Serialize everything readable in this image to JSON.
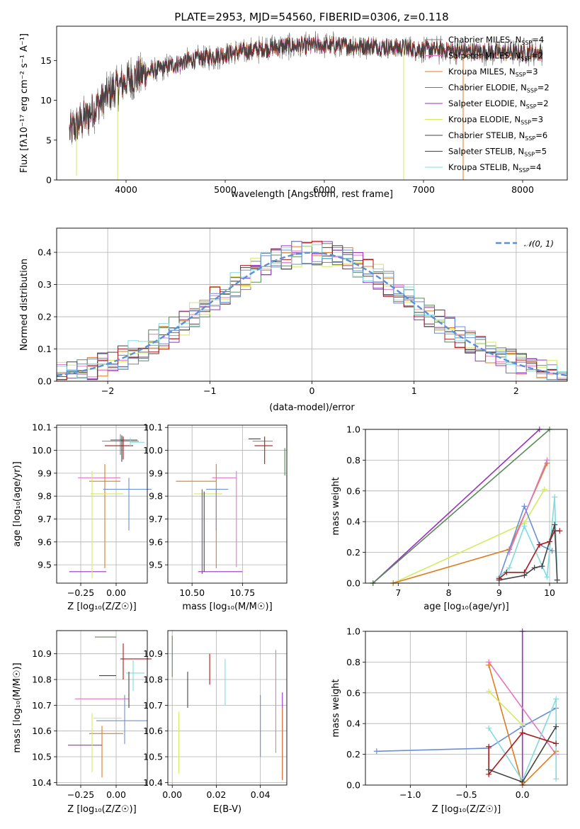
{
  "figure": {
    "title": "PLATE=2953, MJD=54560, FIBERID=0306, z=0.118"
  },
  "colors": {
    "Chabrier MILES": "#808080",
    "Salpeter MILES": "#e377c2",
    "Kroupa MILES": "#e07b20",
    "Chabrier ELODIE": "#5b8a5b",
    "Salpeter ELODIE": "#9b30c0",
    "Kroupa ELODIE": "#d4ea60",
    "Chabrier STELIB": "#444444",
    "Salpeter STELIB": "#aa1a1a",
    "Kroupa STELIB": "#7fdbe0",
    "extra_blue": "#6a8fd8",
    "gauss": "#5b8fd8"
  },
  "chart_data": [
    {
      "type": "line",
      "name": "spectrum",
      "xlabel": "wavelength [Angstrom, rest frame]",
      "ylabel": "Flux [fλ10⁻¹⁷ erg cm⁻² s⁻¹ A⁻¹]",
      "xlim": [
        3300,
        8450
      ],
      "ylim": [
        0,
        19.3
      ],
      "xticks": [
        4000,
        5000,
        6000,
        7000,
        8000
      ],
      "yticks": [
        0,
        5,
        10,
        15
      ],
      "grid": false,
      "legend_position": "top-right",
      "x_range_data": [
        3430,
        8200
      ],
      "continuum_anchors": [
        [
          3430,
          6.0
        ],
        [
          3600,
          8.0
        ],
        [
          3800,
          10.5
        ],
        [
          4000,
          12.5
        ],
        [
          4300,
          13.8
        ],
        [
          4700,
          15.2
        ],
        [
          5200,
          16.2
        ],
        [
          5600,
          16.8
        ],
        [
          6000,
          16.9
        ],
        [
          6500,
          16.8
        ],
        [
          7000,
          16.4
        ],
        [
          7500,
          16.1
        ],
        [
          8000,
          16.0
        ],
        [
          8200,
          16.0
        ]
      ],
      "dips": [
        [
          3500,
          0.5
        ],
        [
          3915,
          0.0
        ],
        [
          6800,
          0.0
        ],
        [
          7400,
          0.0
        ]
      ],
      "series": [
        {
          "name": "Chabrier MILES",
          "nssp": "4"
        },
        {
          "name": "Salpeter MILES",
          "nssp": "2"
        },
        {
          "name": "Kroupa MILES",
          "nssp": "3"
        },
        {
          "name": "Chabrier ELODIE",
          "nssp": "2"
        },
        {
          "name": "Salpeter ELODIE",
          "nssp": "2"
        },
        {
          "name": "Kroupa ELODIE",
          "nssp": "3"
        },
        {
          "name": "Chabrier STELIB",
          "nssp": "6"
        },
        {
          "name": "Salpeter STELIB",
          "nssp": "5"
        },
        {
          "name": "Kroupa STELIB",
          "nssp": "4"
        }
      ]
    },
    {
      "type": "histogram",
      "name": "residuals",
      "xlabel": "(data-model)/error",
      "ylabel": "Normed distribution",
      "xlim": [
        -2.5,
        2.5
      ],
      "ylim": [
        0,
        0.475
      ],
      "xticks": [
        -2,
        -1,
        0,
        1,
        2
      ],
      "yticks": [
        0.0,
        0.1,
        0.2,
        0.3,
        0.4
      ],
      "grid": true,
      "legend": "𝒩(0, 1)",
      "legend_position": "top-right",
      "bin_width": 0.1
    },
    {
      "type": "errorbar",
      "name": "age-vs-Z",
      "xlabel": "Z [log₁₀(Z/Z☉)]",
      "ylabel": "age [log₁₀(age/yr)]",
      "xlim": [
        -0.42,
        0.22
      ],
      "ylim": [
        9.42,
        10.11
      ],
      "xticks": [
        -0.25,
        0.0
      ],
      "yticks": [
        9.5,
        9.6,
        9.7,
        9.8,
        9.9,
        10.0,
        10.1
      ],
      "grid": true,
      "points": [
        {
          "c": "Chabrier MILES",
          "x": 0.03,
          "xerr": [
            0.13,
            0.13
          ],
          "y": 10.04,
          "yerr": [
            0.06,
            0.03
          ]
        },
        {
          "c": "Salpeter MILES",
          "x": -0.12,
          "xerr": [
            0.15,
            0.15
          ],
          "y": 9.88,
          "yerr": [
            0.0,
            0.0
          ]
        },
        {
          "c": "Kroupa MILES",
          "x": -0.08,
          "xerr": [
            0.11,
            0.11
          ],
          "y": 9.865,
          "yerr": [
            0.38,
            0.075
          ]
        },
        {
          "c": "Chabrier ELODIE",
          "x": 0.05,
          "xerr": [
            0.0,
            0.0
          ],
          "y": 10.04,
          "yerr": [
            0.02,
            0.02
          ]
        },
        {
          "c": "Salpeter ELODIE",
          "x": -0.09,
          "xerr": [
            0.24,
            0.02
          ],
          "y": 9.47,
          "yerr": [
            0.0,
            0.0
          ]
        },
        {
          "c": "Kroupa ELODIE",
          "x": -0.17,
          "xerr": [
            0.0,
            0.0
          ],
          "y": 9.81,
          "yerr": [
            0.37,
            0.1
          ]
        },
        {
          "c": "Chabrier STELIB",
          "x": 0.04,
          "xerr": [
            0.08,
            0.11
          ],
          "y": 10.045,
          "yerr": [
            0.095,
            0.02
          ]
        },
        {
          "c": "Salpeter STELIB",
          "x": 0.05,
          "xerr": [
            0.13,
            0.07
          ],
          "y": 10.02,
          "yerr": [
            0.06,
            0.04
          ]
        },
        {
          "c": "Kroupa STELIB",
          "x": 0.1,
          "xerr": [
            0.0,
            0.1
          ],
          "y": 10.035,
          "yerr": [
            0.02,
            0.02
          ]
        },
        {
          "c": "extra_blue",
          "x": 0.09,
          "xerr": [
            0.18,
            0.16
          ],
          "y": 9.83,
          "yerr": [
            0.18,
            0.05
          ]
        },
        {
          "c": "Kroupa ELODIE",
          "x": -0.05,
          "xerr": [
            0.13,
            0.1
          ],
          "y": 9.81,
          "yerr": [
            0.0,
            0.0
          ]
        }
      ]
    },
    {
      "type": "errorbar",
      "name": "age-vs-mass",
      "xlabel": "mass [log₁₀(M/M☉)]",
      "ylabel": "",
      "xlim": [
        10.38,
        10.97
      ],
      "ylim": [
        9.42,
        10.11
      ],
      "xticks": [
        10.5,
        10.75
      ],
      "yticks": [
        9.5,
        9.6,
        9.7,
        9.8,
        9.9,
        10.0,
        10.1
      ],
      "grid": true,
      "points": [
        {
          "c": "Chabrier MILES",
          "x": 10.9,
          "xerr": [
            0.1,
            0.0
          ],
          "y": 10.04,
          "yerr": [
            0.0,
            0.0
          ]
        },
        {
          "c": "Salpeter MILES",
          "x": 10.72,
          "xerr": [
            0.12,
            0.0
          ],
          "y": 9.88,
          "yerr": [
            0.39,
            0.03
          ]
        },
        {
          "c": "Kroupa MILES",
          "x": 10.62,
          "xerr": [
            0.2,
            0.0
          ],
          "y": 9.865,
          "yerr": [
            0.38,
            0.075
          ]
        },
        {
          "c": "Chabrier ELODIE",
          "x": 10.96,
          "xerr": [
            0.0,
            0.0
          ],
          "y": 9.96,
          "yerr": [
            0.07,
            0.05
          ]
        },
        {
          "c": "Salpeter ELODIE",
          "x": 10.63,
          "xerr": [
            0.1,
            0.12
          ],
          "y": 9.47,
          "yerr": [
            0.0,
            0.0
          ]
        },
        {
          "c": "Kroupa ELODIE",
          "x": 10.58,
          "xerr": [
            0.07,
            0.07
          ],
          "y": 9.81,
          "yerr": [
            0.0,
            0.0
          ]
        },
        {
          "c": "Chabrier STELIB",
          "x": 10.84,
          "xerr": [
            0.06,
            0.0
          ],
          "y": 10.05,
          "yerr": [
            0.0,
            0.0
          ]
        },
        {
          "c": "Salpeter STELIB",
          "x": 10.86,
          "xerr": [
            0.05,
            0.04
          ],
          "y": 10.02,
          "yerr": [
            0.08,
            0.04
          ]
        },
        {
          "c": "extra_blue",
          "x": 10.62,
          "xerr": [
            0.05,
            0.06
          ],
          "y": 9.83,
          "yerr": [
            0.18,
            0.0
          ]
        },
        {
          "c": "Salpeter MILES",
          "x": 10.73,
          "xerr": [
            0.0,
            0.0
          ],
          "y": 9.88,
          "yerr": [
            0.0,
            0.0
          ]
        },
        {
          "c": "Salpeter ELODIE",
          "x": 10.55,
          "xerr": [
            0.0,
            0.0
          ],
          "y": 9.6,
          "yerr": [
            0.14,
            0.23
          ]
        },
        {
          "c": "Chabrier STELIB",
          "x": 10.56,
          "xerr": [
            0.0,
            0.0
          ],
          "y": 9.64,
          "yerr": [
            0.17,
            0.18
          ]
        }
      ]
    },
    {
      "type": "line",
      "name": "mass-weight-vs-age",
      "xlabel": "age [log₁₀(age/yr)]",
      "ylabel": "mass weight",
      "xlim": [
        6.35,
        10.35
      ],
      "ylim": [
        0,
        1.0
      ],
      "xticks": [
        7,
        8,
        9,
        10
      ],
      "yticks": [
        0.0,
        0.2,
        0.4,
        0.6,
        0.8,
        1.0
      ],
      "grid": true,
      "series": [
        {
          "c": "Salpeter ELODIE",
          "x": [
            6.5,
            9.8
          ],
          "y": [
            0.0,
            1.0
          ]
        },
        {
          "c": "Chabrier ELODIE",
          "x": [
            6.5,
            10.0
          ],
          "y": [
            0.0,
            1.0
          ]
        },
        {
          "c": "Kroupa ELODIE",
          "x": [
            6.9,
            9.5,
            9.9
          ],
          "y": [
            0.0,
            0.39,
            0.61
          ]
        },
        {
          "c": "Kroupa MILES",
          "x": [
            6.9,
            9.2,
            9.95
          ],
          "y": [
            0.0,
            0.22,
            0.78
          ]
        },
        {
          "c": "Salpeter MILES",
          "x": [
            9.2,
            9.95
          ],
          "y": [
            0.2,
            0.8
          ]
        },
        {
          "c": "extra_blue",
          "x": [
            9.0,
            9.5,
            9.8,
            10.05
          ],
          "y": [
            0.03,
            0.5,
            0.25,
            0.21
          ]
        },
        {
          "c": "Kroupa STELIB",
          "x": [
            9.0,
            9.2,
            9.5,
            9.95,
            10.1,
            10.15
          ],
          "y": [
            0.04,
            0.1,
            0.37,
            0.04,
            0.56,
            0.02
          ]
        },
        {
          "c": "Salpeter STELIB",
          "x": [
            9.0,
            9.15,
            9.5,
            9.8,
            10.0,
            10.1,
            10.2
          ],
          "y": [
            0.03,
            0.07,
            0.07,
            0.25,
            0.27,
            0.34,
            0.34
          ]
        },
        {
          "c": "Chabrier STELIB",
          "x": [
            9.0,
            9.5,
            9.7,
            9.85,
            10.1,
            10.15
          ],
          "y": [
            0.02,
            0.05,
            0.1,
            0.11,
            0.38,
            0.02
          ]
        }
      ]
    },
    {
      "type": "errorbar",
      "name": "mass-vs-Z",
      "xlabel": "Z [log₁₀(Z/Z☉)]",
      "ylabel": "mass [log₁₀(M/M☉)]",
      "xlim": [
        -0.42,
        0.22
      ],
      "ylim": [
        10.39,
        10.99
      ],
      "xticks": [
        -0.25,
        0.0
      ],
      "yticks": [
        10.4,
        10.5,
        10.6,
        10.7,
        10.8,
        10.9
      ],
      "grid": true,
      "points": [
        {
          "c": "Chabrier MILES",
          "x": -0.02,
          "xerr": [
            0.0,
            0.0
          ],
          "y": 10.9,
          "yerr": [
            0.0,
            0.0
          ]
        },
        {
          "c": "Salpeter MILES",
          "x": -0.09,
          "xerr": [
            0.2,
            0.18
          ],
          "y": 10.725,
          "yerr": [
            0.0,
            0.0
          ]
        },
        {
          "c": "Kroupa MILES",
          "x": -0.1,
          "xerr": [
            0.09,
            0.15
          ],
          "y": 10.59,
          "yerr": [
            0.17,
            0.03
          ]
        },
        {
          "c": "Chabrier ELODIE",
          "x": 0.0,
          "xerr": [
            0.15,
            0.0
          ],
          "y": 10.965,
          "yerr": [
            0.0,
            0.0
          ]
        },
        {
          "c": "Salpeter ELODIE",
          "x": -0.1,
          "xerr": [
            0.24,
            0.0
          ],
          "y": 10.545,
          "yerr": [
            0.0,
            0.0
          ]
        },
        {
          "c": "Kroupa ELODIE",
          "x": -0.17,
          "xerr": [
            0.0,
            0.0
          ],
          "y": 10.6,
          "yerr": [
            0.16,
            0.07
          ]
        },
        {
          "c": "Chabrier STELIB",
          "x": 0.0,
          "xerr": [
            0.12,
            0.0
          ],
          "y": 10.815,
          "yerr": [
            0.0,
            0.0
          ]
        },
        {
          "c": "Salpeter STELIB",
          "x": 0.05,
          "xerr": [
            0.02,
            0.2
          ],
          "y": 10.88,
          "yerr": [
            0.08,
            0.06
          ]
        },
        {
          "c": "Kroupa STELIB",
          "x": 0.12,
          "xerr": [
            0.05,
            0.08
          ],
          "y": 10.825,
          "yerr": [
            0.07,
            0.05
          ]
        },
        {
          "c": "extra_blue",
          "x": 0.06,
          "xerr": [
            0.2,
            0.16
          ],
          "y": 10.64,
          "yerr": [
            0.09,
            0.1
          ]
        },
        {
          "c": "Kroupa ELODIE",
          "x": -0.05,
          "xerr": [
            0.11,
            0.09
          ],
          "y": 10.65,
          "yerr": [
            0.0,
            0.0
          ]
        },
        {
          "c": "Chabrier STELIB",
          "x": 0.09,
          "xerr": [
            0.0,
            0.0
          ],
          "y": 10.76,
          "yerr": [
            0.07,
            0.07
          ]
        }
      ]
    },
    {
      "type": "errorbar",
      "name": "mass-vs-EBV",
      "xlabel": "E(B-V)",
      "ylabel": "",
      "xlim": [
        -0.002,
        0.052
      ],
      "ylim": [
        10.39,
        10.99
      ],
      "xticks": [
        0.0,
        0.02,
        0.04
      ],
      "yticks": [
        10.4,
        10.5,
        10.6,
        10.7,
        10.8,
        10.9
      ],
      "grid": true,
      "points": [
        {
          "c": "Chabrier ELODIE",
          "x": 0.0,
          "y": 10.89,
          "yerr": [
            0.08,
            0.08
          ]
        },
        {
          "c": "Kroupa ELODIE",
          "x": 0.003,
          "y": 10.555,
          "yerr": [
            0.12,
            0.12
          ]
        },
        {
          "c": "Chabrier STELIB",
          "x": 0.007,
          "y": 10.76,
          "yerr": [
            0.07,
            0.07
          ]
        },
        {
          "c": "Salpeter STELIB",
          "x": 0.017,
          "y": 10.84,
          "yerr": [
            0.06,
            0.06
          ]
        },
        {
          "c": "Kroupa STELIB",
          "x": 0.024,
          "y": 10.79,
          "yerr": [
            0.09,
            0.09
          ]
        },
        {
          "c": "extra_blue",
          "x": 0.04,
          "y": 10.62,
          "yerr": [
            0.12,
            0.12
          ]
        },
        {
          "c": "Salpeter MILES",
          "x": 0.047,
          "y": 10.715,
          "yerr": [
            0.2,
            0.2
          ]
        },
        {
          "c": "Salpeter ELODIE",
          "x": 0.05,
          "y": 10.58,
          "yerr": [
            0.17,
            0.17
          ]
        },
        {
          "c": "Kroupa MILES",
          "x": 0.05,
          "y": 10.55,
          "yerr": [
            0.14,
            0.14
          ]
        }
      ]
    },
    {
      "type": "line",
      "name": "mass-weight-vs-Z",
      "xlabel": "Z [log₁₀(Z/Z☉)]",
      "ylabel": "mass weight",
      "xlim": [
        -1.4,
        0.4
      ],
      "ylim": [
        0,
        1.0
      ],
      "xticks": [
        -1.0,
        -0.5,
        0.0
      ],
      "yticks": [
        0.0,
        0.2,
        0.4,
        0.6,
        0.8,
        1.0
      ],
      "grid": true,
      "series": [
        {
          "c": "Salpeter ELODIE",
          "x": [
            0.0,
            0.0
          ],
          "y": [
            0.0,
            1.0
          ]
        },
        {
          "c": "extra_blue",
          "x": [
            -1.3,
            -0.3,
            0.0,
            0.3
          ],
          "y": [
            0.22,
            0.24,
            0.38,
            0.5
          ]
        },
        {
          "c": "Salpeter MILES",
          "x": [
            -0.3,
            0.3
          ],
          "y": [
            0.8,
            0.2
          ]
        },
        {
          "c": "Kroupa MILES",
          "x": [
            -0.3,
            0.0,
            0.3
          ],
          "y": [
            0.78,
            0.0,
            0.22
          ]
        },
        {
          "c": "Kroupa ELODIE",
          "x": [
            -0.3,
            0.0
          ],
          "y": [
            0.61,
            0.39
          ]
        },
        {
          "c": "Kroupa STELIB",
          "x": [
            -0.3,
            0.0,
            0.3,
            0.3
          ],
          "y": [
            0.37,
            0.03,
            0.56,
            0.04
          ]
        },
        {
          "c": "Salpeter STELIB",
          "x": [
            -0.3,
            -0.3,
            0.0,
            0.3
          ],
          "y": [
            0.25,
            0.07,
            0.34,
            0.27
          ]
        },
        {
          "c": "Chabrier STELIB",
          "x": [
            -0.3,
            0.0,
            0.3
          ],
          "y": [
            0.1,
            0.02,
            0.38
          ]
        }
      ]
    }
  ]
}
